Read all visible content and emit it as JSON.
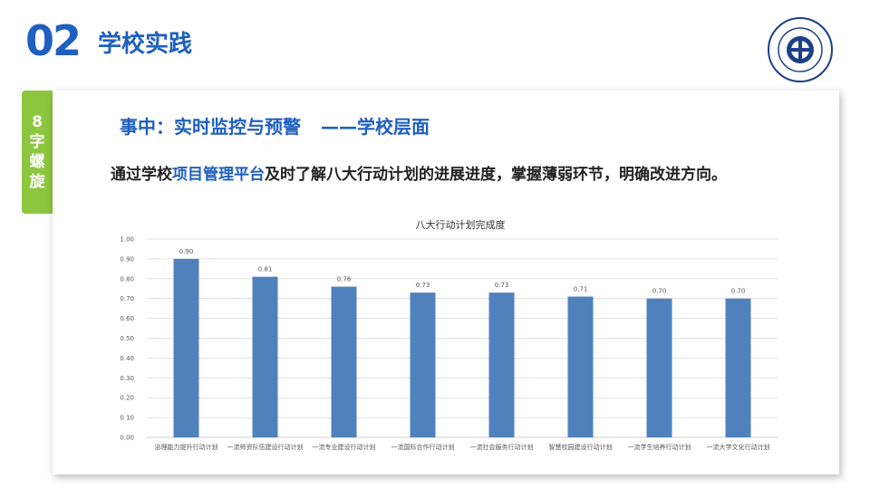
{
  "header": {
    "section_number": "02",
    "section_title": "学校实践"
  },
  "side_tab": {
    "chars": [
      "8",
      "字",
      "螺",
      "旋"
    ]
  },
  "content": {
    "heading": "事中：实时监控与预警",
    "heading_sub": "——学校层面",
    "desc_before": "通过学校",
    "desc_highlight": "项目管理平台",
    "desc_after": "及时了解八大行动计划的进展进度，掌握薄弱环节，明确改进方向。"
  },
  "colors": {
    "accent": "#1f5fbf",
    "bar": "#4f81bd",
    "tab": "#8cc63f"
  },
  "chart_data": {
    "type": "bar",
    "title": "八大行动计划完成度",
    "categories": [
      "治理能力提升行动计划",
      "一流师资队伍建设行动计划",
      "一流专业建设行动计划",
      "一流国际合作行动计划",
      "一流社会服务行动计划",
      "智慧校园建设行动计划",
      "一流学生培养行动计划",
      "一流大学文化行动计划"
    ],
    "values": [
      0.9,
      0.81,
      0.76,
      0.73,
      0.73,
      0.71,
      0.7,
      0.7
    ],
    "value_labels": [
      "0.90",
      "0.81",
      "0.76",
      "0.73",
      "0.73",
      "0.71",
      "0.70",
      "0.70"
    ],
    "yticks": [
      "0.00",
      "0.10",
      "0.20",
      "0.30",
      "0.40",
      "0.50",
      "0.60",
      "0.70",
      "0.80",
      "0.90",
      "1.00"
    ],
    "ylim": [
      0,
      1
    ],
    "grid": true
  }
}
